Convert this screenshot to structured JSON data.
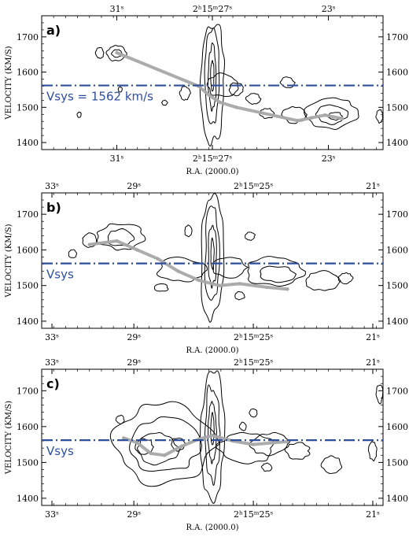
{
  "colors": {
    "vsys_line": "#2d4f9e",
    "ridge": "#a8a8a8",
    "contour": "#000000",
    "frame": "#000000"
  },
  "chart_data": [
    {
      "type": "contour",
      "panel_label": "a)",
      "xlabel": "R.A. (2000.0)",
      "ylabel": "VELOCITY (KM/S)",
      "ylim": [
        1380,
        1760
      ],
      "yticks": [
        1400,
        1500,
        1600,
        1700
      ],
      "xticks_top": [
        {
          "pos": 0.22,
          "label": "31ˢ"
        },
        {
          "pos": 0.5,
          "label": "2ʰ15ᵐ27ˢ"
        },
        {
          "pos": 0.84,
          "label": "23ˢ"
        }
      ],
      "xticks_bottom": [
        {
          "pos": 0.22,
          "label": "31ˢ"
        },
        {
          "pos": 0.5,
          "label": "2ʰ15ᵐ27ˢ"
        },
        {
          "pos": 0.84,
          "label": "23ˢ"
        }
      ],
      "vsys": 1562,
      "vsys_label": "Vsys = 1562 km/s",
      "vsys_style": "dash-dot",
      "ridge": [
        {
          "x": 0.22,
          "v": 1655
        },
        {
          "x": 0.46,
          "v": 1560
        },
        {
          "x": 0.49,
          "v": 1535
        },
        {
          "x": 0.52,
          "v": 1515
        },
        {
          "x": 0.57,
          "v": 1500
        },
        {
          "x": 0.75,
          "v": 1462
        },
        {
          "x": 0.79,
          "v": 1470
        },
        {
          "x": 0.83,
          "v": 1478
        },
        {
          "x": 0.88,
          "v": 1468
        }
      ]
    },
    {
      "type": "contour",
      "panel_label": "b)",
      "xlabel": "R.A. (2000.0)",
      "ylabel": "VELOCITY (KM/S)",
      "ylim": [
        1380,
        1760
      ],
      "yticks": [
        1400,
        1500,
        1600,
        1700
      ],
      "xticks_top": [
        {
          "pos": 0.03,
          "label": "33ˢ"
        },
        {
          "pos": 0.27,
          "label": "29ˢ"
        },
        {
          "pos": 0.62,
          "label": "2ʰ15ᵐ25ˢ"
        },
        {
          "pos": 0.97,
          "label": "21ˢ"
        }
      ],
      "xticks_bottom": [
        {
          "pos": 0.03,
          "label": "33ˢ"
        },
        {
          "pos": 0.27,
          "label": "29ˢ"
        },
        {
          "pos": 0.62,
          "label": "2ʰ15ᵐ25ˢ"
        },
        {
          "pos": 0.97,
          "label": "21ˢ"
        }
      ],
      "vsys": 1562,
      "vsys_label": "Vsys",
      "vsys_style": "dash-dot",
      "ridge": [
        {
          "x": 0.14,
          "v": 1615
        },
        {
          "x": 0.22,
          "v": 1625
        },
        {
          "x": 0.28,
          "v": 1600
        },
        {
          "x": 0.34,
          "v": 1575
        },
        {
          "x": 0.4,
          "v": 1540
        },
        {
          "x": 0.46,
          "v": 1515
        },
        {
          "x": 0.52,
          "v": 1500
        },
        {
          "x": 0.58,
          "v": 1505
        },
        {
          "x": 0.66,
          "v": 1495
        },
        {
          "x": 0.72,
          "v": 1490
        }
      ]
    },
    {
      "type": "contour",
      "panel_label": "c)",
      "xlabel": "R.A. (2000.0)",
      "ylabel": "VELOCITY (KM/S)",
      "ylim": [
        1380,
        1760
      ],
      "yticks": [
        1400,
        1500,
        1600,
        1700
      ],
      "xticks_top": [
        {
          "pos": 0.03,
          "label": "33ˢ"
        },
        {
          "pos": 0.27,
          "label": "29ˢ"
        },
        {
          "pos": 0.62,
          "label": "2ʰ15ᵐ25ˢ"
        },
        {
          "pos": 0.97,
          "label": "21ˢ"
        }
      ],
      "xticks_bottom": [
        {
          "pos": 0.03,
          "label": "33ˢ"
        },
        {
          "pos": 0.27,
          "label": "29ˢ"
        },
        {
          "pos": 0.62,
          "label": "2ʰ15ᵐ25ˢ"
        },
        {
          "pos": 0.97,
          "label": "21ˢ"
        }
      ],
      "vsys": 1562,
      "vsys_label": "Vsys",
      "vsys_style": "dash-dot",
      "ridge": [
        {
          "x": 0.24,
          "v": 1568
        },
        {
          "x": 0.28,
          "v": 1555
        },
        {
          "x": 0.32,
          "v": 1525
        },
        {
          "x": 0.36,
          "v": 1520
        },
        {
          "x": 0.41,
          "v": 1545
        },
        {
          "x": 0.46,
          "v": 1565
        },
        {
          "x": 0.5,
          "v": 1575
        },
        {
          "x": 0.56,
          "v": 1560
        },
        {
          "x": 0.62,
          "v": 1550
        },
        {
          "x": 0.68,
          "v": 1555
        },
        {
          "x": 0.72,
          "v": 1558
        }
      ]
    }
  ]
}
